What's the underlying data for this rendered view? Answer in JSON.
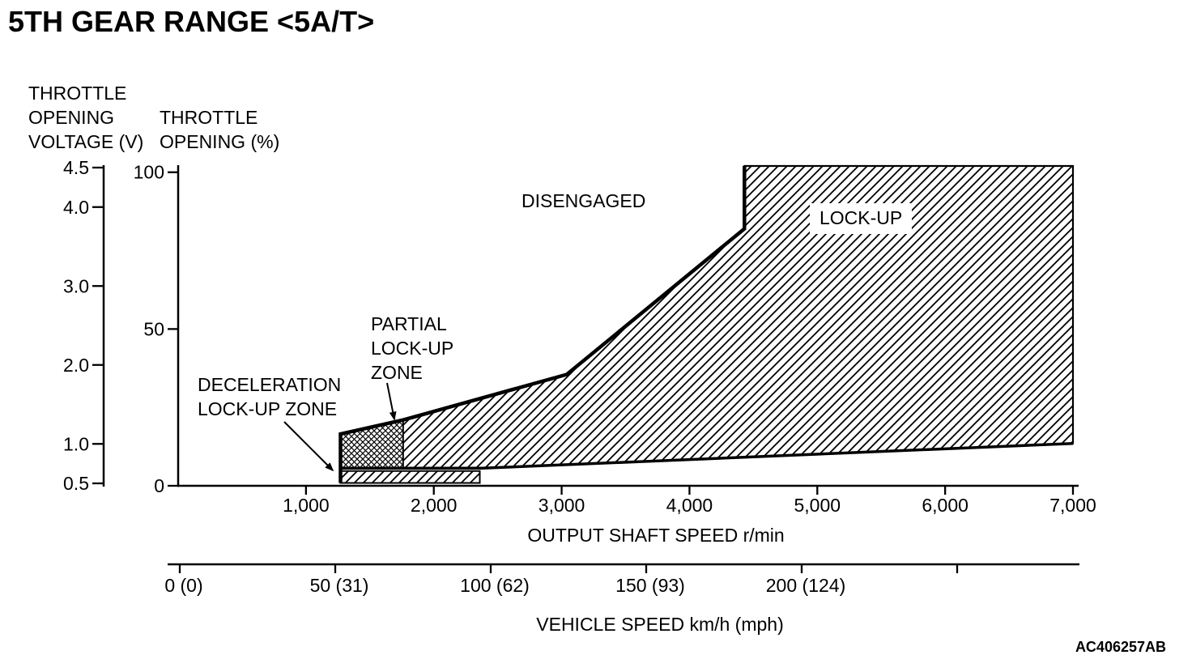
{
  "page": {
    "title": "5TH GEAR RANGE <5A/T>",
    "figure_code": "AC406257AB"
  },
  "chart_data": {
    "type": "area",
    "title": "5TH GEAR RANGE <5A/T>",
    "grid": false,
    "legend": false,
    "colors": {
      "ink": "#000000",
      "background": "#ffffff"
    },
    "x_axis": {
      "label": "OUTPUT SHAFT SPEED r/min",
      "min": 0,
      "max": 7000,
      "ticks": [
        1000,
        2000,
        3000,
        4000,
        5000,
        6000,
        7000
      ],
      "tick_labels": [
        "1,000",
        "2,000",
        "3,000",
        "4,000",
        "5,000",
        "6,000",
        "7,000"
      ]
    },
    "x_axis_secondary": {
      "label": "VEHICLE SPEED km/h (mph)",
      "min": 0,
      "max": 289,
      "ticks": [
        0,
        50,
        100,
        150,
        200,
        250
      ],
      "tick_labels": [
        "0 (0)",
        "50 (31)",
        "100 (62)",
        "150 (93)",
        "200 (124)",
        ""
      ]
    },
    "y_axis_pct": {
      "label": "THROTTLE OPENING (%)",
      "label_lines": [
        "THROTTLE",
        "OPENING (%)"
      ],
      "min": 0,
      "max": 102,
      "ticks": [
        0,
        50,
        100
      ],
      "tick_labels": [
        "0",
        "50",
        "100"
      ]
    },
    "y_axis_voltage": {
      "label": "THROTTLE OPENING VOLTAGE (V)",
      "label_lines": [
        "THROTTLE",
        "OPENING",
        "VOLTAGE (V)"
      ],
      "min": 0.5,
      "max": 4.5,
      "ticks": [
        0.5,
        1.0,
        2.0,
        3.0,
        4.0,
        4.5
      ],
      "tick_labels": [
        "0.5",
        "1.0",
        "2.0",
        "3.0",
        "4.0",
        "4.5"
      ]
    },
    "regions": {
      "disengaged": {
        "label": "DISENGAGED",
        "fill": "none"
      },
      "lockup": {
        "label": "LOCK-UP",
        "fill": "hatch",
        "points_rpm_pct": [
          [
            1270,
            16.5
          ],
          [
            1760,
            21
          ],
          [
            3040,
            35.5
          ],
          [
            4430,
            82
          ],
          [
            4430,
            102
          ],
          [
            7000,
            102
          ],
          [
            7000,
            13.5
          ],
          [
            2380,
            5.6
          ],
          [
            1270,
            5.6
          ]
        ]
      },
      "partial_lockup": {
        "label": "PARTIAL LOCK-UP ZONE",
        "label_lines": [
          "PARTIAL",
          "LOCK-UP",
          "ZONE"
        ],
        "fill": "crosshatch",
        "points_rpm_pct": [
          [
            1270,
            16.5
          ],
          [
            1760,
            21
          ],
          [
            1760,
            5.6
          ],
          [
            1270,
            5.6
          ]
        ]
      },
      "deceleration_lockup": {
        "label": "DECELERATION LOCK-UP ZONE",
        "label_lines": [
          "DECELERATION",
          "LOCK-UP ZONE"
        ],
        "fill": "hatch",
        "points_rpm_pct": [
          [
            1270,
            4.7
          ],
          [
            2360,
            4.7
          ],
          [
            2360,
            0.9
          ],
          [
            1270,
            0.9
          ]
        ]
      }
    },
    "lines": {
      "engage_line_rpm_pct": [
        [
          1270,
          0.9
        ],
        [
          1270,
          16.5
        ],
        [
          1760,
          21
        ],
        [
          3040,
          35.5
        ],
        [
          4430,
          82
        ],
        [
          4430,
          102
        ]
      ],
      "release_line_rpm_pct": [
        [
          1270,
          5.6
        ],
        [
          2380,
          5.6
        ],
        [
          7000,
          13.5
        ]
      ]
    }
  }
}
